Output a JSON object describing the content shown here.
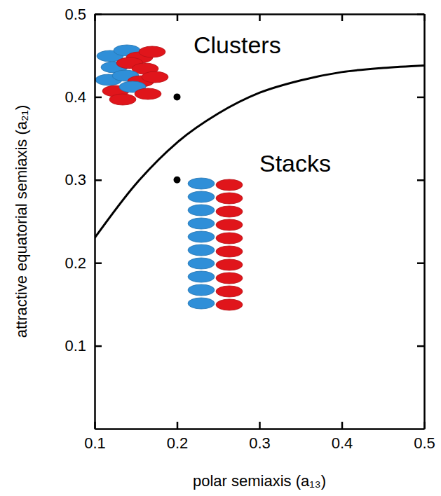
{
  "chart_data": {
    "type": "line",
    "x_label": "polar semiaxis (a₁₃)",
    "y_label": "attractive equatorial semiaxis (a₂₁)",
    "annotations": [
      "Clusters",
      "Stacks"
    ],
    "xlim": [
      0.1,
      0.5
    ],
    "xticks": [
      0.1,
      0.2,
      0.3,
      0.4,
      0.5
    ],
    "ylim": [
      0,
      0.5
    ],
    "yticks": [
      0.1,
      0.2,
      0.3,
      0.4,
      0.5
    ],
    "grid": false,
    "series": [
      {
        "x": [
          0.1,
          0.15,
          0.2,
          0.25,
          0.3,
          0.35,
          0.4,
          0.45,
          0.5
        ],
        "values": [
          0.23,
          0.295,
          0.345,
          0.38,
          0.405,
          0.42,
          0.43,
          0.435,
          0.438
        ],
        "color": "#000000",
        "line_style": "solid"
      },
      {
        "type": "scatter",
        "x": [
          0.2,
          0.2
        ],
        "values": [
          0.4,
          0.3
        ],
        "color": "#000000",
        "marker": "circle"
      }
    ]
  }
}
